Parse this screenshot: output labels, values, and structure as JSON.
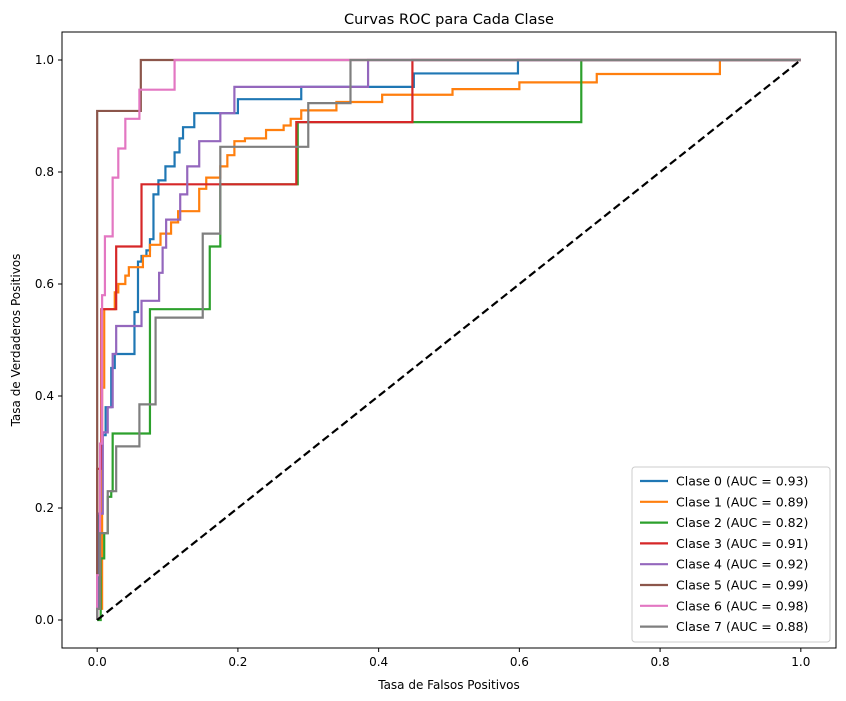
{
  "chart_data": {
    "type": "line",
    "title": "Curvas ROC para Cada Clase",
    "xlabel": "Tasa de Falsos Positivos",
    "ylabel": "Tasa de Verdaderos Positivos",
    "xlim": [
      -0.05,
      1.05
    ],
    "ylim": [
      -0.05,
      1.05
    ],
    "x_ticks": [
      "0.0",
      "0.2",
      "0.4",
      "0.6",
      "0.8",
      "1.0"
    ],
    "y_ticks": [
      "0.0",
      "0.2",
      "0.4",
      "0.6",
      "0.8",
      "1.0"
    ],
    "grid": false,
    "legend_position": "lower-right",
    "reference_line": {
      "points": [
        [
          0,
          0
        ],
        [
          1,
          1
        ]
      ],
      "color": "#000000",
      "style": "dashed"
    },
    "series": [
      {
        "name": "Clase 0 (AUC = 0.93)",
        "color": "#1f77b4",
        "points": [
          [
            0,
            0
          ],
          [
            0,
            0.02
          ],
          [
            0.003,
            0.02
          ],
          [
            0.003,
            0.19
          ],
          [
            0.007,
            0.19
          ],
          [
            0.007,
            0.33
          ],
          [
            0.012,
            0.33
          ],
          [
            0.012,
            0.38
          ],
          [
            0.02,
            0.38
          ],
          [
            0.02,
            0.45
          ],
          [
            0.025,
            0.45
          ],
          [
            0.025,
            0.475
          ],
          [
            0.053,
            0.475
          ],
          [
            0.053,
            0.55
          ],
          [
            0.058,
            0.55
          ],
          [
            0.058,
            0.64
          ],
          [
            0.063,
            0.64
          ],
          [
            0.063,
            0.65
          ],
          [
            0.07,
            0.65
          ],
          [
            0.07,
            0.66
          ],
          [
            0.075,
            0.66
          ],
          [
            0.075,
            0.68
          ],
          [
            0.08,
            0.68
          ],
          [
            0.08,
            0.76
          ],
          [
            0.087,
            0.76
          ],
          [
            0.087,
            0.785
          ],
          [
            0.097,
            0.785
          ],
          [
            0.097,
            0.81
          ],
          [
            0.11,
            0.81
          ],
          [
            0.11,
            0.835
          ],
          [
            0.117,
            0.835
          ],
          [
            0.117,
            0.86
          ],
          [
            0.122,
            0.86
          ],
          [
            0.122,
            0.88
          ],
          [
            0.138,
            0.88
          ],
          [
            0.138,
            0.905
          ],
          [
            0.2,
            0.905
          ],
          [
            0.2,
            0.93
          ],
          [
            0.29,
            0.93
          ],
          [
            0.29,
            0.952
          ],
          [
            0.45,
            0.952
          ],
          [
            0.45,
            0.976
          ],
          [
            0.598,
            0.976
          ],
          [
            0.598,
            1.0
          ],
          [
            1.0,
            1.0
          ]
        ]
      },
      {
        "name": "Clase 1 (AUC = 0.89)",
        "color": "#ff7f0e",
        "points": [
          [
            0,
            0
          ],
          [
            0,
            0.02
          ],
          [
            0.007,
            0.02
          ],
          [
            0.007,
            0.415
          ],
          [
            0.01,
            0.415
          ],
          [
            0.01,
            0.555
          ],
          [
            0.025,
            0.555
          ],
          [
            0.025,
            0.585
          ],
          [
            0.03,
            0.585
          ],
          [
            0.03,
            0.6
          ],
          [
            0.04,
            0.6
          ],
          [
            0.04,
            0.615
          ],
          [
            0.045,
            0.615
          ],
          [
            0.045,
            0.63
          ],
          [
            0.065,
            0.63
          ],
          [
            0.065,
            0.65
          ],
          [
            0.075,
            0.65
          ],
          [
            0.075,
            0.67
          ],
          [
            0.09,
            0.67
          ],
          [
            0.09,
            0.69
          ],
          [
            0.105,
            0.69
          ],
          [
            0.105,
            0.71
          ],
          [
            0.115,
            0.71
          ],
          [
            0.115,
            0.73
          ],
          [
            0.145,
            0.73
          ],
          [
            0.145,
            0.77
          ],
          [
            0.155,
            0.77
          ],
          [
            0.155,
            0.79
          ],
          [
            0.175,
            0.79
          ],
          [
            0.175,
            0.81
          ],
          [
            0.185,
            0.81
          ],
          [
            0.185,
            0.83
          ],
          [
            0.195,
            0.83
          ],
          [
            0.195,
            0.855
          ],
          [
            0.21,
            0.855
          ],
          [
            0.21,
            0.86
          ],
          [
            0.24,
            0.86
          ],
          [
            0.24,
            0.875
          ],
          [
            0.265,
            0.875
          ],
          [
            0.265,
            0.883
          ],
          [
            0.275,
            0.883
          ],
          [
            0.275,
            0.895
          ],
          [
            0.29,
            0.895
          ],
          [
            0.29,
            0.91
          ],
          [
            0.34,
            0.91
          ],
          [
            0.34,
            0.925
          ],
          [
            0.405,
            0.925
          ],
          [
            0.405,
            0.938
          ],
          [
            0.505,
            0.938
          ],
          [
            0.505,
            0.948
          ],
          [
            0.6,
            0.948
          ],
          [
            0.6,
            0.96
          ],
          [
            0.71,
            0.96
          ],
          [
            0.71,
            0.975
          ],
          [
            0.885,
            0.975
          ],
          [
            0.885,
            1.0
          ],
          [
            1.0,
            1.0
          ]
        ]
      },
      {
        "name": "Clase 2 (AUC = 0.82)",
        "color": "#2ca02c",
        "points": [
          [
            0,
            0
          ],
          [
            0.005,
            0
          ],
          [
            0.005,
            0.11
          ],
          [
            0.01,
            0.11
          ],
          [
            0.01,
            0.155
          ],
          [
            0.015,
            0.155
          ],
          [
            0.015,
            0.22
          ],
          [
            0.02,
            0.22
          ],
          [
            0.02,
            0.23
          ],
          [
            0.022,
            0.23
          ],
          [
            0.022,
            0.333
          ],
          [
            0.075,
            0.333
          ],
          [
            0.075,
            0.555
          ],
          [
            0.16,
            0.555
          ],
          [
            0.16,
            0.667
          ],
          [
            0.175,
            0.667
          ],
          [
            0.175,
            0.778
          ],
          [
            0.285,
            0.778
          ],
          [
            0.285,
            0.889
          ],
          [
            0.688,
            0.889
          ],
          [
            0.688,
            1.0
          ],
          [
            1.0,
            1.0
          ]
        ]
      },
      {
        "name": "Clase 3 (AUC = 0.91)",
        "color": "#d62728",
        "points": [
          [
            0,
            0
          ],
          [
            0,
            0.27
          ],
          [
            0.006,
            0.27
          ],
          [
            0.006,
            0.555
          ],
          [
            0.027,
            0.555
          ],
          [
            0.027,
            0.667
          ],
          [
            0.063,
            0.667
          ],
          [
            0.063,
            0.778
          ],
          [
            0.283,
            0.778
          ],
          [
            0.283,
            0.889
          ],
          [
            0.448,
            0.889
          ],
          [
            0.448,
            1.0
          ],
          [
            1.0,
            1.0
          ]
        ]
      },
      {
        "name": "Clase 4 (AUC = 0.92)",
        "color": "#9467bd",
        "points": [
          [
            0,
            0
          ],
          [
            0,
            0.19
          ],
          [
            0.008,
            0.19
          ],
          [
            0.008,
            0.335
          ],
          [
            0.015,
            0.335
          ],
          [
            0.015,
            0.38
          ],
          [
            0.022,
            0.38
          ],
          [
            0.022,
            0.475
          ],
          [
            0.027,
            0.475
          ],
          [
            0.027,
            0.525
          ],
          [
            0.063,
            0.525
          ],
          [
            0.063,
            0.57
          ],
          [
            0.088,
            0.57
          ],
          [
            0.088,
            0.62
          ],
          [
            0.093,
            0.62
          ],
          [
            0.093,
            0.665
          ],
          [
            0.098,
            0.665
          ],
          [
            0.098,
            0.715
          ],
          [
            0.118,
            0.715
          ],
          [
            0.118,
            0.76
          ],
          [
            0.128,
            0.76
          ],
          [
            0.128,
            0.81
          ],
          [
            0.145,
            0.81
          ],
          [
            0.145,
            0.855
          ],
          [
            0.175,
            0.855
          ],
          [
            0.175,
            0.905
          ],
          [
            0.195,
            0.905
          ],
          [
            0.195,
            0.952
          ],
          [
            0.385,
            0.952
          ],
          [
            0.385,
            1.0
          ],
          [
            1.0,
            1.0
          ]
        ]
      },
      {
        "name": "Clase 5 (AUC = 0.99)",
        "color": "#8c564b",
        "points": [
          [
            0,
            0
          ],
          [
            0,
            0.909
          ],
          [
            0.062,
            0.909
          ],
          [
            0.062,
            1.0
          ],
          [
            1.0,
            1.0
          ]
        ]
      },
      {
        "name": "Clase 6 (AUC = 0.98)",
        "color": "#e377c2",
        "points": [
          [
            0,
            0
          ],
          [
            0,
            0.08
          ],
          [
            0.004,
            0.08
          ],
          [
            0.004,
            0.315
          ],
          [
            0.007,
            0.315
          ],
          [
            0.007,
            0.58
          ],
          [
            0.011,
            0.58
          ],
          [
            0.011,
            0.685
          ],
          [
            0.022,
            0.685
          ],
          [
            0.022,
            0.79
          ],
          [
            0.03,
            0.79
          ],
          [
            0.03,
            0.842
          ],
          [
            0.04,
            0.842
          ],
          [
            0.04,
            0.895
          ],
          [
            0.06,
            0.895
          ],
          [
            0.06,
            0.947
          ],
          [
            0.11,
            0.947
          ],
          [
            0.11,
            1.0
          ],
          [
            1.0,
            1.0
          ]
        ]
      },
      {
        "name": "Clase 7 (AUC = 0.88)",
        "color": "#7f7f7f",
        "points": [
          [
            0,
            0
          ],
          [
            0,
            0.02
          ],
          [
            0.004,
            0.02
          ],
          [
            0.004,
            0.155
          ],
          [
            0.015,
            0.155
          ],
          [
            0.015,
            0.23
          ],
          [
            0.027,
            0.23
          ],
          [
            0.027,
            0.31
          ],
          [
            0.06,
            0.31
          ],
          [
            0.06,
            0.385
          ],
          [
            0.083,
            0.385
          ],
          [
            0.083,
            0.54
          ],
          [
            0.15,
            0.54
          ],
          [
            0.15,
            0.69
          ],
          [
            0.175,
            0.69
          ],
          [
            0.175,
            0.845
          ],
          [
            0.3,
            0.845
          ],
          [
            0.3,
            0.923
          ],
          [
            0.36,
            0.923
          ],
          [
            0.36,
            1.0
          ],
          [
            1.0,
            1.0
          ]
        ]
      }
    ]
  }
}
